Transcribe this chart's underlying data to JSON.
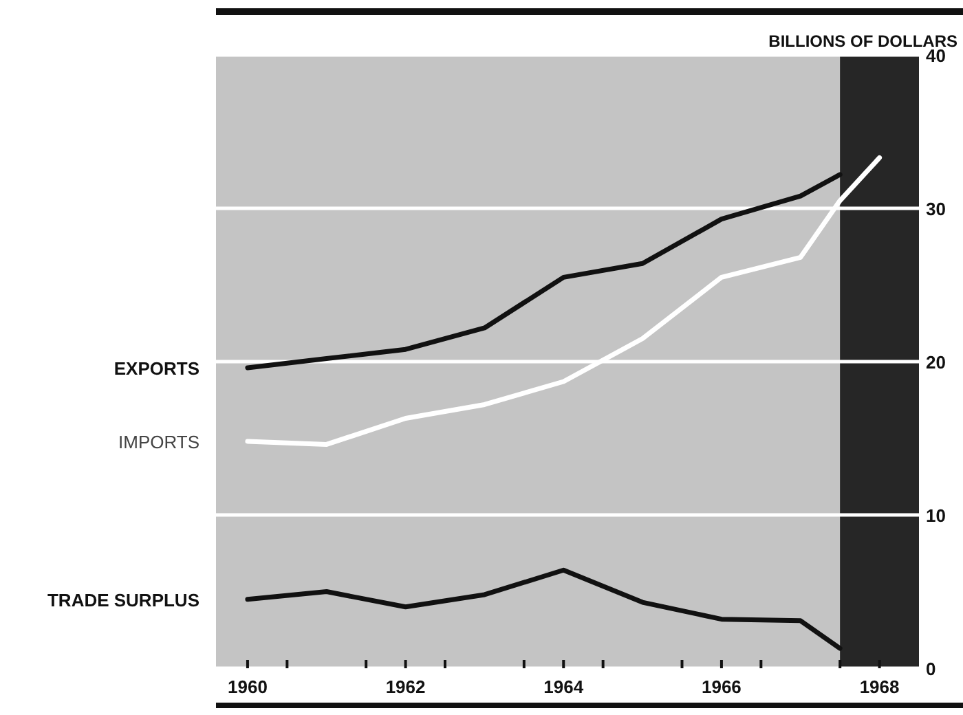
{
  "chart_data": {
    "type": "line",
    "ylabel": "BILLIONS OF DOLLARS",
    "xlim": [
      1959.6,
      1968.5
    ],
    "ylim": [
      0,
      40
    ],
    "xticks": [
      1960,
      {
        "value": 1960.5,
        "label": null
      },
      {
        "value": 1961.5,
        "label": null
      },
      1962,
      {
        "value": 1962.5,
        "label": null
      },
      {
        "value": 1963.5,
        "label": null
      },
      1964,
      {
        "value": 1964.5,
        "label": null
      },
      {
        "value": 1965.5,
        "label": null
      },
      1966,
      {
        "value": 1966.5,
        "label": null
      },
      {
        "value": 1967.5,
        "label": null
      },
      1968
    ],
    "yticks": [
      0,
      10,
      20,
      30,
      40
    ],
    "grid": "y",
    "marker": "none",
    "line_style": "solid",
    "x": [
      1960,
      1961,
      1962,
      1963,
      1964,
      1965,
      1966,
      1967,
      1967.5
    ],
    "series": [
      {
        "name": "EXPORTS",
        "color": "#111111",
        "values": [
          19.6,
          20.2,
          20.8,
          22.2,
          25.5,
          26.4,
          29.3,
          30.8,
          32.2
        ]
      },
      {
        "name": "IMPORTS",
        "color": "#ffffff",
        "x": [
          1960,
          1961,
          1962,
          1963,
          1964,
          1965,
          1966,
          1967,
          1967.5,
          1968
        ],
        "values": [
          14.8,
          14.6,
          16.3,
          17.2,
          18.7,
          21.5,
          25.5,
          26.8,
          30.5,
          33.3
        ]
      },
      {
        "name": "TRADE SURPLUS",
        "color": "#111111",
        "values": [
          4.5,
          5.0,
          4.0,
          4.8,
          6.4,
          4.3,
          3.2,
          3.1,
          1.3
        ]
      }
    ],
    "bands": [
      {
        "axis": "x",
        "from": 1967.5,
        "to": 1968.5,
        "color": "#262626"
      }
    ]
  }
}
